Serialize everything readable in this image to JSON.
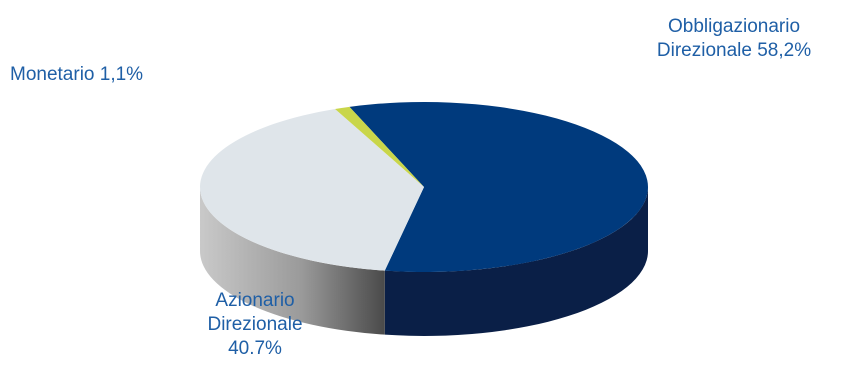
{
  "chart_data": {
    "type": "pie",
    "style": "3d",
    "slices": [
      {
        "label_lines": [
          "Obbligazionario",
          "Direzionale 58,2%"
        ],
        "value": 58.2,
        "color": "#003a7d",
        "side_color": "#0a1f47"
      },
      {
        "label_lines": [
          "Azionario",
          "Direzionale",
          "40.7%"
        ],
        "value": 40.7,
        "color": "#dfe5ea",
        "side_color": "#8c8c8c"
      },
      {
        "label_lines": [
          "Monetario 1,1%"
        ],
        "value": 1.1,
        "color": "#c9d64a",
        "side_color": "#8f9a2a"
      }
    ],
    "label_color": "#1f5fa6",
    "legend": "none"
  }
}
